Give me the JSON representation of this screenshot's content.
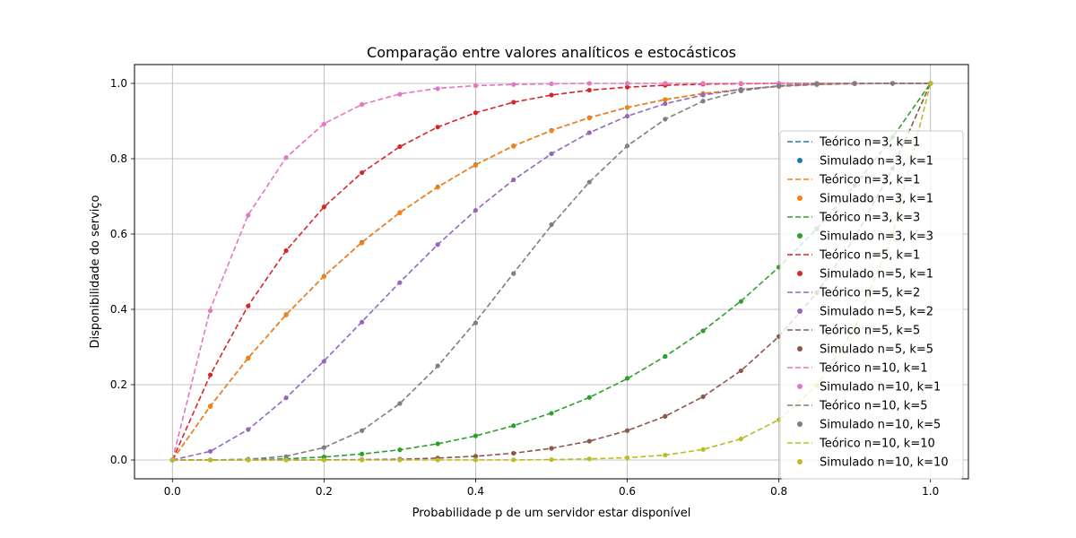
{
  "chart_data": {
    "type": "line",
    "title": "Comparação entre valores analíticos e estocásticos",
    "xlabel": "Probabilidade p de um servidor estar disponível",
    "ylabel": "Disponibilidade do serviço",
    "xlim": [
      -0.05,
      1.05
    ],
    "ylim": [
      -0.05,
      1.05
    ],
    "xticks": [
      "0.0",
      "0.2",
      "0.4",
      "0.6",
      "0.8",
      "1.0"
    ],
    "yticks": [
      "0.0",
      "0.2",
      "0.4",
      "0.6",
      "0.8",
      "1.0"
    ],
    "grid": true,
    "legend_position": "center-right",
    "x": [
      0.0,
      0.05,
      0.1,
      0.15,
      0.2,
      0.25,
      0.3,
      0.35,
      0.4,
      0.45,
      0.5,
      0.55,
      0.6,
      0.65,
      0.7,
      0.75,
      0.8,
      0.85,
      0.9,
      0.95,
      1.0
    ],
    "series": [
      {
        "name": "Teórico n=3, k=1",
        "kind": "line",
        "color": "#1f77b4",
        "values": [
          0,
          0.143,
          0.271,
          0.386,
          0.488,
          0.578,
          0.657,
          0.725,
          0.784,
          0.834,
          0.875,
          0.909,
          0.936,
          0.957,
          0.973,
          0.984,
          0.992,
          0.997,
          0.999,
          1.0,
          1.0
        ]
      },
      {
        "name": "Simulado n=3, k=1",
        "kind": "dots",
        "color": "#1f77b4",
        "values": [
          0,
          0.143,
          0.271,
          0.386,
          0.488,
          0.578,
          0.657,
          0.725,
          0.784,
          0.834,
          0.875,
          0.909,
          0.936,
          0.957,
          0.973,
          0.984,
          0.992,
          0.997,
          0.999,
          1.0,
          1.0
        ]
      },
      {
        "name": "Teórico n=3, k=1",
        "kind": "line",
        "color": "#ff7f0e",
        "values": [
          0,
          0.143,
          0.271,
          0.386,
          0.488,
          0.578,
          0.657,
          0.725,
          0.784,
          0.834,
          0.875,
          0.909,
          0.936,
          0.957,
          0.973,
          0.984,
          0.992,
          0.997,
          0.999,
          1.0,
          1.0
        ]
      },
      {
        "name": "Simulado n=3, k=1",
        "kind": "dots",
        "color": "#ff7f0e",
        "values": [
          0,
          0.142,
          0.27,
          0.385,
          0.487,
          0.576,
          0.656,
          0.724,
          0.782,
          0.833,
          0.874,
          0.908,
          0.936,
          0.957,
          0.972,
          0.984,
          0.992,
          0.997,
          0.999,
          1.0,
          1.0
        ]
      },
      {
        "name": "Teórico n=3, k=3",
        "kind": "line",
        "color": "#2ca02c",
        "values": [
          0,
          0.0001,
          0.001,
          0.003,
          0.008,
          0.016,
          0.027,
          0.043,
          0.064,
          0.091,
          0.125,
          0.166,
          0.216,
          0.275,
          0.343,
          0.422,
          0.512,
          0.614,
          0.729,
          0.857,
          1.0
        ]
      },
      {
        "name": "Simulado n=3, k=3",
        "kind": "dots",
        "color": "#2ca02c",
        "values": [
          0,
          0.0001,
          0.001,
          0.003,
          0.008,
          0.016,
          0.027,
          0.043,
          0.064,
          0.091,
          0.124,
          0.166,
          0.217,
          0.275,
          0.343,
          0.421,
          0.512,
          0.614,
          0.729,
          0.857,
          1.0
        ]
      },
      {
        "name": "Teórico n=5, k=1",
        "kind": "line",
        "color": "#d62728",
        "values": [
          0,
          0.226,
          0.41,
          0.556,
          0.672,
          0.763,
          0.832,
          0.884,
          0.922,
          0.95,
          0.969,
          0.982,
          0.99,
          0.995,
          0.998,
          0.999,
          1.0,
          1.0,
          1.0,
          1.0,
          1.0
        ]
      },
      {
        "name": "Simulado n=5, k=1",
        "kind": "dots",
        "color": "#d62728",
        "values": [
          0,
          0.226,
          0.409,
          0.556,
          0.672,
          0.763,
          0.832,
          0.884,
          0.922,
          0.95,
          0.969,
          0.982,
          0.99,
          0.995,
          0.998,
          0.999,
          1.0,
          1.0,
          1.0,
          1.0,
          1.0
        ]
      },
      {
        "name": "Teórico n=5, k=2",
        "kind": "line",
        "color": "#9467bd",
        "values": [
          0,
          0.023,
          0.081,
          0.165,
          0.263,
          0.367,
          0.472,
          0.572,
          0.663,
          0.744,
          0.813,
          0.869,
          0.913,
          0.946,
          0.969,
          0.984,
          0.993,
          0.998,
          1.0,
          1.0,
          1.0
        ]
      },
      {
        "name": "Simulado n=5, k=2",
        "kind": "dots",
        "color": "#9467bd",
        "values": [
          0,
          0.023,
          0.081,
          0.165,
          0.262,
          0.366,
          0.471,
          0.572,
          0.663,
          0.744,
          0.813,
          0.869,
          0.913,
          0.946,
          0.969,
          0.984,
          0.993,
          0.998,
          1.0,
          1.0,
          1.0
        ]
      },
      {
        "name": "Teórico n=5, k=5",
        "kind": "line",
        "color": "#8c564b",
        "values": [
          0,
          0.0,
          0.0,
          0.0001,
          0.0003,
          0.001,
          0.002,
          0.005,
          0.01,
          0.018,
          0.031,
          0.05,
          0.078,
          0.116,
          0.168,
          0.237,
          0.328,
          0.444,
          0.59,
          0.774,
          1.0
        ]
      },
      {
        "name": "Simulado n=5, k=5",
        "kind": "dots",
        "color": "#8c564b",
        "values": [
          0,
          0.0,
          0.0,
          0.0001,
          0.0003,
          0.001,
          0.002,
          0.005,
          0.01,
          0.018,
          0.031,
          0.05,
          0.078,
          0.116,
          0.168,
          0.237,
          0.328,
          0.444,
          0.59,
          0.774,
          1.0
        ]
      },
      {
        "name": "Teórico n=10, k=1",
        "kind": "line",
        "color": "#e377c2",
        "values": [
          0,
          0.401,
          0.651,
          0.803,
          0.893,
          0.944,
          0.972,
          0.987,
          0.994,
          0.997,
          0.999,
          1.0,
          1.0,
          1.0,
          1.0,
          1.0,
          1.0,
          1.0,
          1.0,
          1.0,
          1.0
        ]
      },
      {
        "name": "Simulado n=10, k=1",
        "kind": "dots",
        "color": "#e377c2",
        "values": [
          0,
          0.396,
          0.65,
          0.803,
          0.892,
          0.944,
          0.971,
          0.986,
          0.994,
          0.997,
          0.999,
          1.0,
          1.0,
          1.0,
          1.0,
          1.0,
          1.0,
          1.0,
          1.0,
          1.0,
          1.0
        ]
      },
      {
        "name": "Teórico n=10, k=5",
        "kind": "line",
        "color": "#7f7f7f",
        "values": [
          0,
          0.0001,
          0.002,
          0.01,
          0.033,
          0.078,
          0.15,
          0.249,
          0.367,
          0.496,
          0.623,
          0.738,
          0.834,
          0.905,
          0.953,
          0.98,
          0.994,
          0.999,
          1.0,
          1.0,
          1.0
        ]
      },
      {
        "name": "Simulado n=10, k=5",
        "kind": "dots",
        "color": "#7f7f7f",
        "values": [
          0,
          0.0001,
          0.002,
          0.009,
          0.033,
          0.078,
          0.15,
          0.25,
          0.364,
          0.495,
          0.625,
          0.738,
          0.834,
          0.905,
          0.953,
          0.98,
          0.994,
          0.999,
          1.0,
          1.0,
          1.0
        ]
      },
      {
        "name": "Teórico n=10, k=10",
        "kind": "line",
        "color": "#bcbd22",
        "values": [
          0,
          0.0,
          0.0,
          0.0,
          0.0,
          0.0,
          0.0,
          0.0,
          0.0001,
          0.0003,
          0.001,
          0.003,
          0.006,
          0.013,
          0.028,
          0.056,
          0.107,
          0.197,
          0.349,
          0.599,
          1.0
        ]
      },
      {
        "name": "Simulado n=10, k=10",
        "kind": "dots",
        "color": "#bcbd22",
        "values": [
          0,
          0.0,
          0.0,
          0.0,
          0.0,
          0.0,
          0.0,
          0.0,
          0.0001,
          0.0003,
          0.001,
          0.003,
          0.006,
          0.013,
          0.028,
          0.056,
          0.107,
          0.197,
          0.349,
          0.599,
          1.0
        ]
      }
    ]
  }
}
